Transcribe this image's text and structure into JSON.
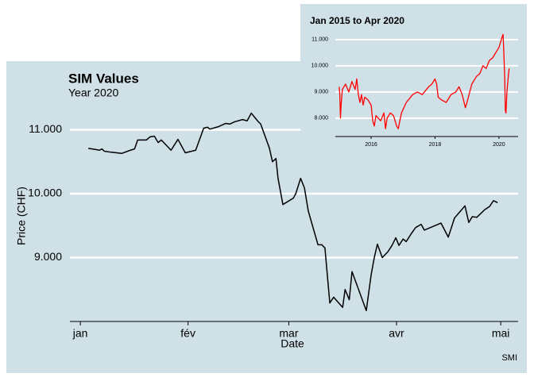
{
  "chart_data": [
    {
      "type": "line",
      "title": "SIM Values",
      "subtitle": "Year 2020",
      "xlabel": "Date",
      "ylabel": "Price (CHF)",
      "caption": "SMI",
      "x": [
        2.3,
        4.6,
        5.5,
        6.2,
        6.9,
        8.7,
        11.9,
        14.4,
        15.6,
        16.5,
        19,
        20.1,
        21.3,
        22.4,
        23.3,
        26.1,
        28.1,
        30.2,
        33.2,
        35.5,
        36.6,
        37.3,
        39.8,
        41.4,
        41.9,
        43,
        44.4,
        46.7,
        48,
        49.2,
        51,
        51.9,
        54.4,
        55.3,
        56.3,
        56.9,
        58.3,
        61.3,
        62,
        63.4,
        64.5,
        65.6,
        68.4,
        69.5,
        70.4,
        71.8,
        72.9,
        75.5,
        76.2,
        77.4,
        78.2,
        82.3,
        83.7,
        84.6,
        85.5,
        86.9,
        88.5,
        89.7,
        90.8,
        91.7,
        92.9,
        93.8,
        95.2,
        96.5,
        98.1,
        99,
        103.8,
        105.9,
        107.7,
        109.3,
        110.7,
        111.8,
        112.8,
        114.1,
        116.4,
        117.8,
        118.9,
        120.1
      ],
      "values": [
        10710,
        10690,
        10680,
        10700,
        10665,
        10650,
        10630,
        10680,
        10700,
        10840,
        10840,
        10890,
        10900,
        10800,
        10840,
        10680,
        10850,
        10640,
        10680,
        11025,
        11040,
        11010,
        11050,
        11090,
        11100,
        11090,
        11125,
        11160,
        11140,
        11260,
        11140,
        11090,
        10715,
        10500,
        10550,
        10240,
        9830,
        9930,
        10000,
        10240,
        10090,
        9730,
        9200,
        9200,
        9150,
        8290,
        8380,
        8220,
        8500,
        8340,
        8780,
        8170,
        8730,
        9000,
        9210,
        9000,
        9090,
        9190,
        9310,
        9190,
        9290,
        9250,
        9370,
        9470,
        9520,
        9430,
        9540,
        9320,
        9620,
        9720,
        9810,
        9550,
        9640,
        9630,
        9750,
        9800,
        9890,
        9860
      ],
      "color": "#000000",
      "xlim": [
        -3,
        126
      ],
      "xticks": [
        {
          "value": 0,
          "label": "jan"
        },
        {
          "value": 31,
          "label": "fév"
        },
        {
          "value": 60,
          "label": "mar"
        },
        {
          "value": 91,
          "label": "avr"
        },
        {
          "value": 121,
          "label": "mai"
        }
      ],
      "ylim": [
        8000,
        11300
      ],
      "yticks": [
        {
          "value": 9000,
          "label": "9.000"
        },
        {
          "value": 10000,
          "label": "10.000"
        },
        {
          "value": 11000,
          "label": "11.000"
        }
      ],
      "grid": true
    },
    {
      "type": "line",
      "title": "Jan 2015 to Apr 2020",
      "x": [
        2015.0,
        2015.02,
        2015.04,
        2015.06,
        2015.1,
        2015.2,
        2015.3,
        2015.4,
        2015.5,
        2015.55,
        2015.6,
        2015.65,
        2015.7,
        2015.75,
        2015.8,
        2015.9,
        2016.0,
        2016.05,
        2016.1,
        2016.15,
        2016.3,
        2016.4,
        2016.45,
        2016.5,
        2016.6,
        2016.7,
        2016.8,
        2016.85,
        2016.95,
        2017.1,
        2017.3,
        2017.45,
        2017.6,
        2017.8,
        2017.9,
        2018.0,
        2018.05,
        2018.1,
        2018.2,
        2018.35,
        2018.5,
        2018.65,
        2018.75,
        2018.85,
        2018.95,
        2019.0,
        2019.15,
        2019.3,
        2019.4,
        2019.5,
        2019.6,
        2019.7,
        2019.8,
        2019.9,
        2020.0,
        2020.1,
        2020.13,
        2020.15,
        2020.18,
        2020.2,
        2020.22,
        2020.25,
        2020.3,
        2020.32
      ],
      "values": [
        9200,
        8900,
        8000,
        8500,
        9100,
        9300,
        9000,
        9400,
        9100,
        9500,
        8900,
        8600,
        8900,
        8500,
        8800,
        8700,
        8500,
        7900,
        7700,
        8100,
        7900,
        8200,
        7600,
        8000,
        8200,
        8100,
        7700,
        7600,
        8200,
        8600,
        8900,
        9000,
        8900,
        9200,
        9300,
        9500,
        9300,
        8800,
        8700,
        8600,
        8900,
        9000,
        9200,
        8900,
        8400,
        8600,
        9300,
        9600,
        9700,
        10000,
        9900,
        10200,
        10300,
        10500,
        10700,
        11100,
        11200,
        10600,
        9600,
        8300,
        8200,
        9000,
        9700,
        9900
      ],
      "color": "#ff0000",
      "xlim": [
        2014.88,
        2020.6
      ],
      "xticks": [
        2016,
        2018,
        2020
      ],
      "ylim": [
        7300,
        11360
      ],
      "yticks": [
        {
          "value": 8000,
          "label": "8.000"
        },
        {
          "value": 9000,
          "label": "9.000"
        },
        {
          "value": 10000,
          "label": "10.000"
        },
        {
          "value": 11000,
          "label": "11.000"
        }
      ],
      "grid": true
    }
  ]
}
